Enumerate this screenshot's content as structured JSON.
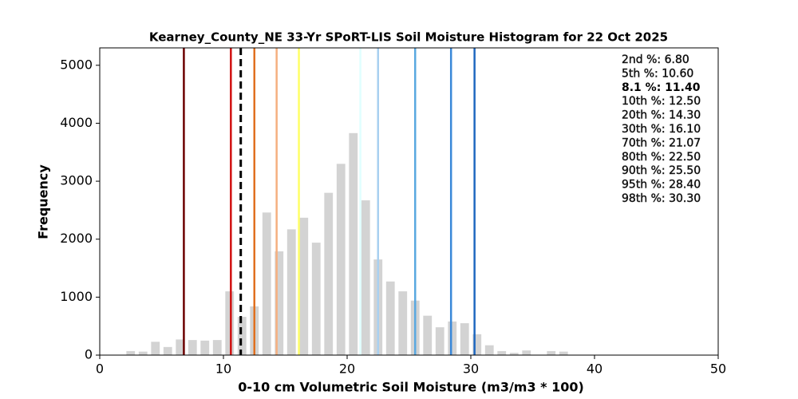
{
  "chart_data": {
    "type": "histogram",
    "title": "Kearney_County_NE 33-Yr SPoRT-LIS Soil Moisture Histogram for 22 Oct 2025",
    "xlabel": "0-10 cm Volumetric Soil Moisture (m3/m3 * 100)",
    "ylabel": "Frequency",
    "bins": [
      2,
      3,
      4,
      5,
      6,
      7,
      8,
      9,
      10,
      11,
      12,
      13,
      14,
      15,
      16,
      17,
      18,
      19,
      20,
      21,
      22,
      23,
      24,
      25,
      26,
      27,
      28,
      29,
      30,
      31,
      32,
      33,
      34,
      35,
      36,
      37,
      38
    ],
    "values": [
      70,
      60,
      230,
      140,
      270,
      260,
      250,
      260,
      1100,
      660,
      840,
      2460,
      1790,
      2170,
      2370,
      1940,
      2800,
      3300,
      3830,
      2670,
      1650,
      1270,
      1100,
      940,
      680,
      480,
      580,
      550,
      360,
      170,
      70,
      40,
      80,
      0,
      70,
      60
    ],
    "color": "#d3d3d3",
    "xlim": [
      0,
      50
    ],
    "xticks": [
      0,
      10,
      20,
      30,
      40,
      50
    ],
    "ylim": [
      0,
      5300
    ],
    "yticks": [
      0,
      1000,
      2000,
      3000,
      4000,
      5000
    ],
    "lines": [
      {
        "label": "2nd %: 6.80",
        "value": 6.8,
        "color": "#6b0000",
        "dashed": false
      },
      {
        "label": "5th %: 10.60",
        "value": 10.6,
        "color": "#d01010",
        "dashed": false
      },
      {
        "label": "8.1 %: 11.40",
        "value": 11.4,
        "color": "#000000",
        "dashed": true
      },
      {
        "label": "10th %: 12.50",
        "value": 12.5,
        "color": "#e07020",
        "dashed": false
      },
      {
        "label": "20th %: 14.30",
        "value": 14.3,
        "color": "#f5b080",
        "dashed": false
      },
      {
        "label": "30th %: 16.10",
        "value": 16.1,
        "color": "#ffff66",
        "dashed": false
      },
      {
        "label": "70th %: 21.07",
        "value": 21.07,
        "color": "#e0ffff",
        "dashed": false
      },
      {
        "label": "80th %: 22.50",
        "value": 22.5,
        "color": "#a8d0f0",
        "dashed": false
      },
      {
        "label": "90th %: 25.50",
        "value": 25.5,
        "color": "#5aa8e0",
        "dashed": false
      },
      {
        "label": "95th %: 28.40",
        "value": 28.4,
        "color": "#3a88d8",
        "dashed": false
      },
      {
        "label": "98th %: 30.30",
        "value": 30.3,
        "color": "#1f68c0",
        "dashed": false
      }
    ]
  }
}
